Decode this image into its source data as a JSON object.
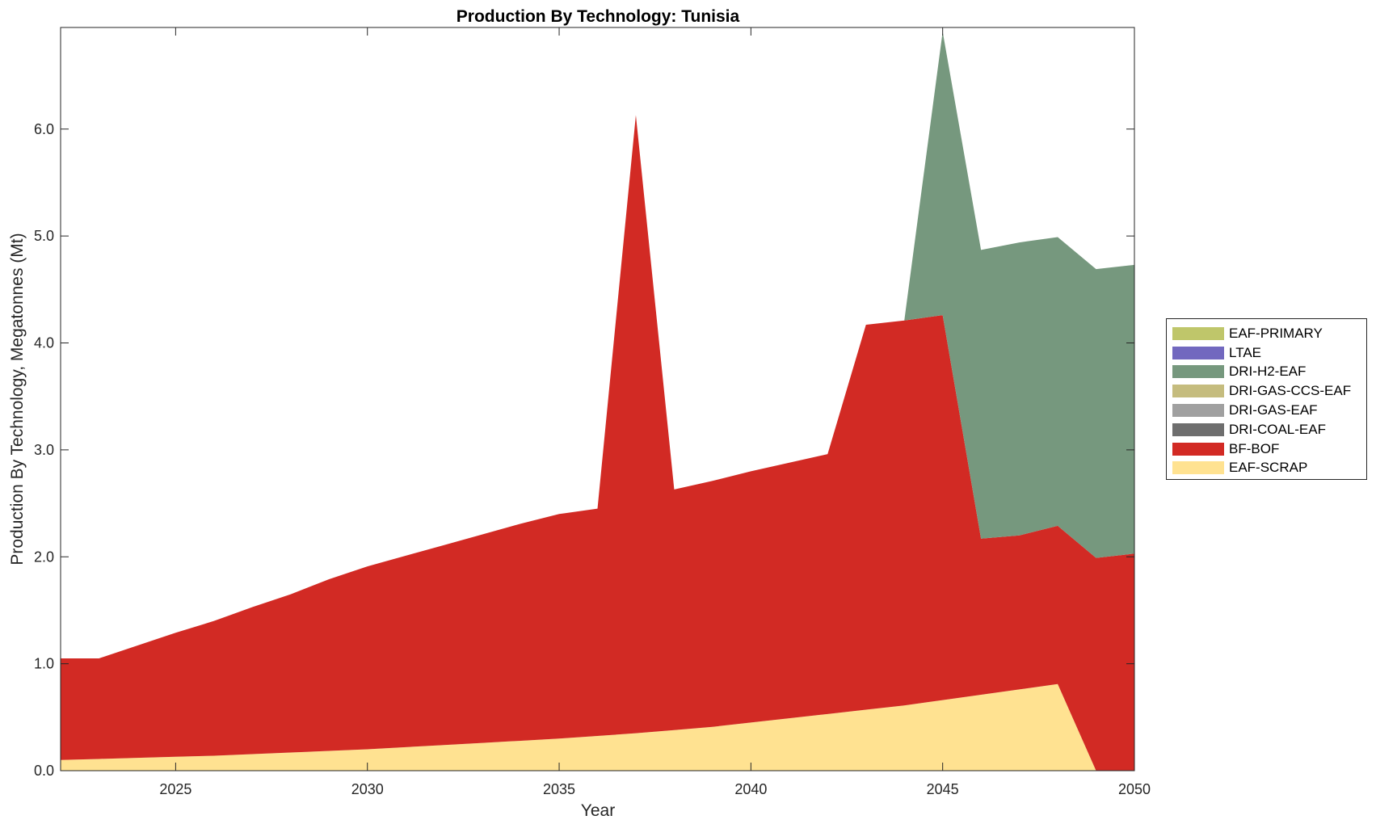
{
  "chart_data": {
    "type": "area",
    "title": "Production By Technology: Tunisia",
    "xlabel": "Year",
    "ylabel": "Production By Technology, Megatonnes (Mt)",
    "xlim": [
      2022,
      2050
    ],
    "ylim": [
      0,
      6.95
    ],
    "x_ticks": [
      2025,
      2030,
      2035,
      2040,
      2045,
      2050
    ],
    "x_tick_labels": [
      "2025",
      "2030",
      "2035",
      "2040",
      "2045",
      "2050"
    ],
    "y_ticks": [
      0,
      1,
      2,
      3,
      4,
      5,
      6
    ],
    "y_tick_labels": [
      "0.0",
      "1.0",
      "2.0",
      "3.0",
      "4.0",
      "5.0",
      "6.0"
    ],
    "grid": false,
    "legend_position": "right",
    "x": [
      2022,
      2023,
      2024,
      2025,
      2026,
      2027,
      2028,
      2029,
      2030,
      2031,
      2032,
      2033,
      2034,
      2035,
      2036,
      2037,
      2038,
      2039,
      2040,
      2041,
      2042,
      2043,
      2044,
      2045,
      2046,
      2047,
      2048,
      2049,
      2050
    ],
    "series": [
      {
        "name": "EAF-SCRAP",
        "color": "#FFE291",
        "values": [
          0.1,
          0.11,
          0.12,
          0.13,
          0.14,
          0.155,
          0.17,
          0.185,
          0.2,
          0.22,
          0.24,
          0.26,
          0.28,
          0.3,
          0.325,
          0.35,
          0.38,
          0.41,
          0.45,
          0.49,
          0.53,
          0.57,
          0.61,
          0.66,
          0.71,
          0.76,
          0.81,
          0.0,
          0.0
        ]
      },
      {
        "name": "BF-BOF",
        "color": "#D22A24",
        "values": [
          0.95,
          0.94,
          1.05,
          1.16,
          1.26,
          1.375,
          1.48,
          1.605,
          1.71,
          1.79,
          1.87,
          1.95,
          2.03,
          2.1,
          2.125,
          5.78,
          2.25,
          2.3,
          2.35,
          2.39,
          2.43,
          3.6,
          3.6,
          3.6,
          1.46,
          1.44,
          1.48,
          1.99,
          2.03
        ]
      },
      {
        "name": "DRI-COAL-EAF",
        "color": "#6E6E6E",
        "values": [
          0,
          0,
          0,
          0,
          0,
          0,
          0,
          0,
          0,
          0,
          0,
          0,
          0,
          0,
          0,
          0,
          0,
          0,
          0,
          0,
          0,
          0,
          0,
          0,
          0,
          0,
          0,
          0,
          0
        ]
      },
      {
        "name": "DRI-GAS-EAF",
        "color": "#A0A0A0",
        "values": [
          0,
          0,
          0,
          0,
          0,
          0,
          0,
          0,
          0,
          0,
          0,
          0,
          0,
          0,
          0,
          0,
          0,
          0,
          0,
          0,
          0,
          0,
          0,
          0,
          0,
          0,
          0,
          0,
          0
        ]
      },
      {
        "name": "DRI-GAS-CCS-EAF",
        "color": "#C5BC7E",
        "values": [
          0,
          0,
          0,
          0,
          0,
          0,
          0,
          0,
          0,
          0,
          0,
          0,
          0,
          0,
          0,
          0,
          0,
          0,
          0,
          0,
          0,
          0,
          0,
          0,
          0,
          0,
          0,
          0,
          0
        ]
      },
      {
        "name": "DRI-H2-EAF",
        "color": "#76987E",
        "values": [
          0,
          0,
          0,
          0,
          0,
          0,
          0,
          0,
          0,
          0,
          0,
          0,
          0,
          0,
          0,
          0,
          0,
          0,
          0,
          0,
          0,
          0,
          0,
          2.65,
          2.7,
          2.74,
          2.7,
          2.7,
          2.7
        ]
      },
      {
        "name": "LTAE",
        "color": "#7268BF",
        "values": [
          0,
          0,
          0,
          0,
          0,
          0,
          0,
          0,
          0,
          0,
          0,
          0,
          0,
          0,
          0,
          0,
          0,
          0,
          0,
          0,
          0,
          0,
          0,
          0,
          0,
          0,
          0,
          0,
          0
        ]
      },
      {
        "name": "EAF-PRIMARY",
        "color": "#BFC66A",
        "values": [
          0,
          0,
          0,
          0,
          0,
          0,
          0,
          0,
          0,
          0,
          0,
          0,
          0,
          0,
          0,
          0,
          0,
          0,
          0,
          0,
          0,
          0,
          0,
          0,
          0,
          0,
          0,
          0,
          0
        ]
      }
    ],
    "legend_order": [
      "EAF-PRIMARY",
      "LTAE",
      "DRI-H2-EAF",
      "DRI-GAS-CCS-EAF",
      "DRI-GAS-EAF",
      "DRI-COAL-EAF",
      "BF-BOF",
      "EAF-SCRAP"
    ]
  }
}
